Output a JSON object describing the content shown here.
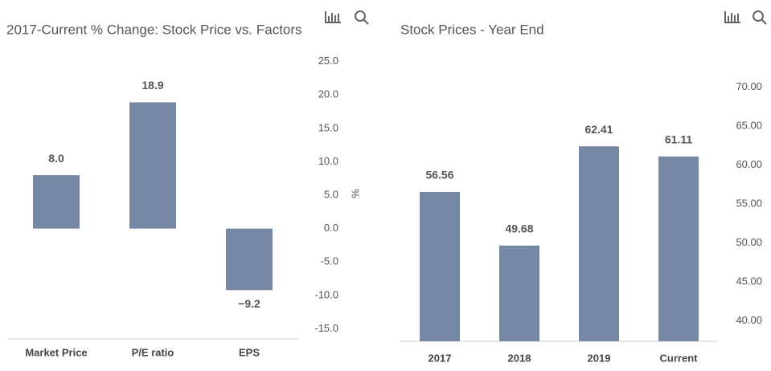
{
  "chart_data": [
    {
      "type": "bar",
      "title": "2017-Current % Change: Stock Price vs. Factors",
      "categories": [
        "Market Price",
        "P/E ratio",
        "EPS"
      ],
      "values": [
        8.0,
        18.9,
        -9.2
      ],
      "value_labels": [
        "8.0",
        "18.9",
        "−9.2"
      ],
      "color": "#7788a5",
      "y_axis_label": "%",
      "y_axis_side": "right",
      "ylim": [
        -16.5,
        27
      ],
      "yticks": [
        {
          "value": 25,
          "label": "25.0"
        },
        {
          "value": 20,
          "label": "20.0"
        },
        {
          "value": 15,
          "label": "15.0"
        },
        {
          "value": 10,
          "label": "10.0"
        },
        {
          "value": 5,
          "label": "5.0"
        },
        {
          "value": 0,
          "label": "0.0"
        },
        {
          "value": -5,
          "label": "-5.0"
        },
        {
          "value": -10,
          "label": "-10.0"
        },
        {
          "value": -15,
          "label": "-15.0"
        }
      ],
      "grid": false
    },
    {
      "type": "bar",
      "title": "Stock Prices - Year End",
      "categories": [
        "2017",
        "2018",
        "2019",
        "Current"
      ],
      "values": [
        56.56,
        49.68,
        62.41,
        61.11
      ],
      "color": "#7788a5",
      "y_axis_side": "right",
      "ylim": [
        37.4,
        75
      ],
      "yticks": [
        {
          "value": 70,
          "label": "70.00"
        },
        {
          "value": 65,
          "label": "65.00"
        },
        {
          "value": 60,
          "label": "60.00"
        },
        {
          "value": 55,
          "label": "55.00"
        },
        {
          "value": 50,
          "label": "50.00"
        },
        {
          "value": 45,
          "label": "45.00"
        },
        {
          "value": 40,
          "label": "40.00"
        }
      ],
      "grid": false
    }
  ]
}
